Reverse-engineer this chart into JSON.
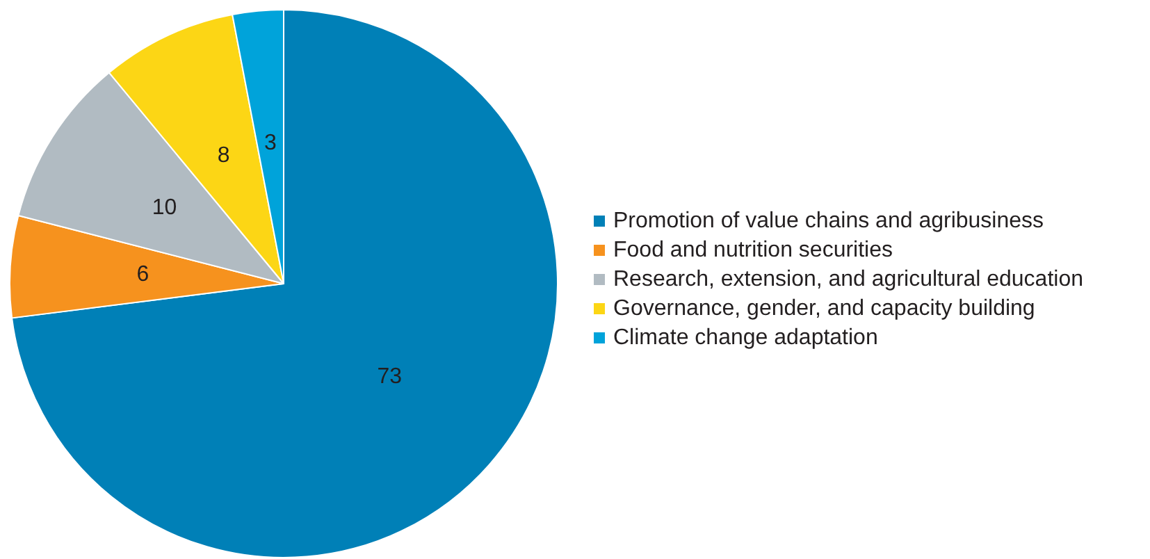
{
  "chart_data": {
    "type": "pie",
    "categories": [
      "Promotion of value chains and agribusiness",
      "Food and nutrition securities",
      "Research, extension, and agricultural education",
      "Governance, gender, and capacity building",
      "Climate change adaptation"
    ],
    "values": [
      73,
      6,
      10,
      8,
      3
    ],
    "colors": [
      "#0080b7",
      "#f6921e",
      "#b1bbc2",
      "#fcd615",
      "#00a3da"
    ],
    "data_labels": true,
    "legend": "right"
  }
}
